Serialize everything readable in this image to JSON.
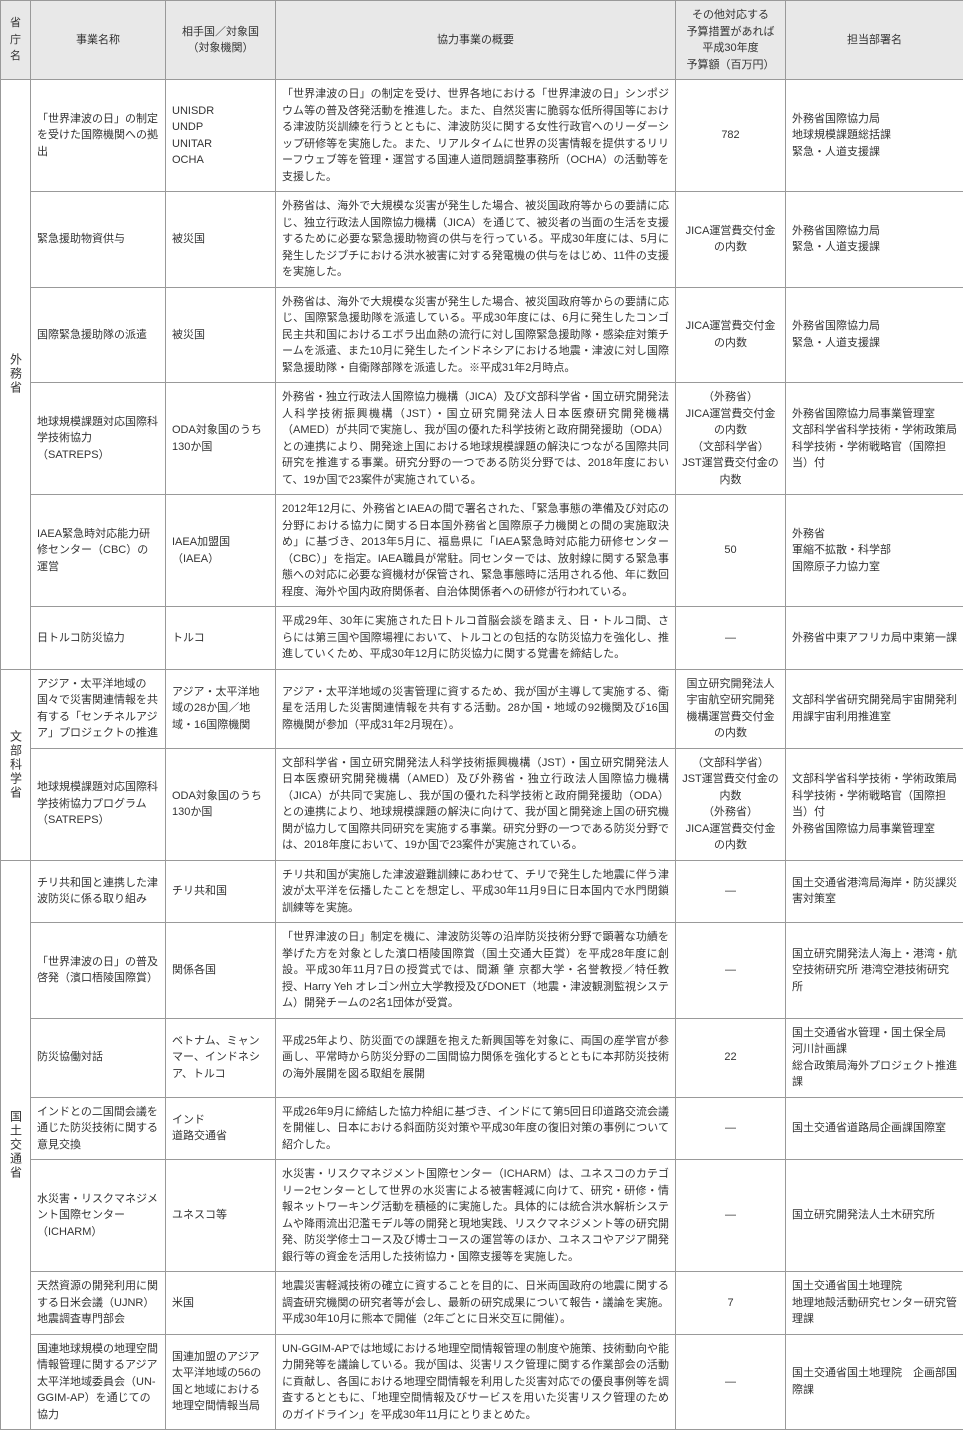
{
  "headers": {
    "ministry": "省庁名",
    "name": "事業名称",
    "partner": "相手国／対象国\n（対象機関）",
    "summary": "協力事業の概要",
    "budget": "その他対応する\n予算措置があれば\n平成30年度\n予算額（百万円）",
    "dept": "担当部署名"
  },
  "ministries": [
    {
      "label": "外務省",
      "rows": [
        {
          "name": "「世界津波の日」の制定を受けた国際機関への拠出",
          "partner": "UNISDR\nUNDP\nUNITAR\nOCHA",
          "summary": "「世界津波の日」の制定を受け、世界各地における「世界津波の日」シンポジウム等の普及啓発活動を推進した。また、自然災害に脆弱な低所得国等における津波防災訓練を行うとともに、津波防災に関する女性行政官へのリーダーシップ研修等を実施した。また、リアルタイムに世界の災害情報を提供するリリーフウェブ等を管理・運営する国連人道問題調整事務所（OCHA）の活動等を支援した。",
          "budget": "782",
          "dept": "外務省国際協力局\n地球規模課題総括課\n緊急・人道支援課"
        },
        {
          "name": "緊急援助物資供与",
          "partner": "被災国",
          "summary": "外務省は、海外で大規模な災害が発生した場合、被災国政府等からの要請に応じ、独立行政法人国際協力機構（JICA）を通じて、被災者の当面の生活を支援するために必要な緊急援助物資の供与を行っている。平成30年度には、5月に発生したジブチにおける洪水被害に対する発電機の供与をはじめ、11件の支援を実施した。",
          "budget": "JICA運営費交付金の内数",
          "dept": "外務省国際協力局\n緊急・人道支援課"
        },
        {
          "name": "国際緊急援助隊の派遣",
          "partner": "被災国",
          "summary": "外務省は、海外で大規模な災害が発生した場合、被災国政府等からの要請に応じ、国際緊急援助隊を派遣している。平成30年度には、6月に発生したコンゴ民主共和国におけるエボラ出血熱の流行に対し国際緊急援助隊・感染症対策チームを派遣、また10月に発生したインドネシアにおける地震・津波に対し国際緊急援助隊・自衛隊部隊を派遣した。※平成31年2月時点。",
          "budget": "JICA運営費交付金の内数",
          "dept": "外務省国際協力局\n緊急・人道支援課"
        },
        {
          "name": "地球規模課題対応国際科学技術協力（SATREPS）",
          "partner": "ODA対象国のうち130か国",
          "summary": "外務省・独立行政法人国際協力機構（JICA）及び文部科学省・国立研究開発法人科学技術振興機構（JST）・国立研究開発法人日本医療研究開発機構（AMED）が共同で実施し、我が国の優れた科学技術と政府開発援助（ODA）との連携により、開発途上国における地球規模課題の解決につながる国際共同研究を推進する事業。研究分野の一つである防災分野では、2018年度において、19か国で23案件が実施されている。",
          "budget": "（外務省）\nJICA運営費交付金の内数\n（文部科学省）\nJST運営費交付金の内数",
          "dept": "外務省国際協力局事業管理室\n文部科学省科学技術・学術政策局科学技術・学術戦略官（国際担当）付"
        },
        {
          "name": "IAEA緊急時対応能力研修センター（CBC）の運営",
          "partner": "IAEA加盟国（IAEA）",
          "summary": "2012年12月に、外務省とIAEAの間で署名された、「緊急事態の準備及び対応の分野における協力に関する日本国外務省と国際原子力機関との間の実施取決め」に基づき、2013年5月に、福島県に「IAEA緊急時対応能力研修センター（CBC）」を指定。IAEA職員が常駐。同センターでは、放射線に関する緊急事態への対応に必要な資機材が保管され、緊急事態時に活用される他、年に数回程度、海外や国内政府関係者、自治体関係者への研修が行われている。",
          "budget": "50",
          "dept": "外務省\n軍縮不拡散・科学部\n国際原子力協力室"
        },
        {
          "name": "日トルコ防災協力",
          "partner": "トルコ",
          "summary": "平成29年、30年に実施された日トルコ首脳会談を踏まえ、日・トルコ間、さらには第三国や国際場裡において、トルコとの包括的な防災協力を強化し、推進していくため、平成30年12月に防災協力に関する覚書を締結した。",
          "budget": "—",
          "dept": "外務省中東アフリカ局中東第一課"
        }
      ]
    },
    {
      "label": "文部科学省",
      "rows": [
        {
          "name": "アジア・太平洋地域の国々で災害関連情報を共有する「センチネルアジア」プロジェクトの推進",
          "partner": "アジア・太平洋地域の28か国／地域・16国際機関",
          "summary": "アジア・太平洋地域の災害管理に資するため、我が国が主導して実施する、衛星を活用した災害関連情報を共有する活動。28か国・地域の92機関及び16国際機関が参加（平成31年2月現在）。",
          "budget": "国立研究開発法人宇宙航空研究開発機構運営費交付金の内数",
          "dept": "文部科学省研究開発局宇宙開発利用課宇宙利用推進室"
        },
        {
          "name": "地球規模課題対応国際科学技術協力プログラム（SATREPS）",
          "partner": "ODA対象国のうち130か国",
          "summary": "文部科学省・国立研究開発法人科学技術振興機構（JST）・国立研究開発法人日本医療研究開発機構（AMED）及び外務省・独立行政法人国際協力機構（JICA）が共同で実施し、我が国の優れた科学技術と政府開発援助（ODA）との連携により、地球規模課題の解決に向けて、我が国と開発途上国の研究機関が協力して国際共同研究を実施する事業。研究分野の一つである防災分野では、2018年度において、19か国で23案件が実施されている。",
          "budget": "（文部科学省）\nJST運営費交付金の内数\n（外務省）\nJICA運営費交付金の内数",
          "dept": "文部科学省科学技術・学術政策局科学技術・学術戦略官（国際担当）付\n外務省国際協力局事業管理室"
        }
      ]
    },
    {
      "label": "国土交通省",
      "rows": [
        {
          "name": "チリ共和国と連携した津波防災に係る取り組み",
          "partner": "チリ共和国",
          "summary": "チリ共和国が実施した津波避難訓練にあわせて、チリで発生した地震に伴う津波が太平洋を伝播したことを想定し、平成30年11月9日に日本国内で水門閉鎖訓練等を実施。",
          "budget": "—",
          "dept": "国土交通省港湾局海岸・防災課災害対策室"
        },
        {
          "name": "「世界津波の日」の普及啓発（濱口梧陵国際賞）",
          "partner": "関係各国",
          "summary": "「世界津波の日」制定を機に、津波防災等の沿岸防災技術分野で顕著な功績を挙げた方を対象とした濱口梧陵国際賞（国土交通大臣賞）を平成28年度に創設。平成30年11月7日の授賞式では、間瀬 肇 京都大学・名誉教授／特任教授、Harry Yeh オレゴン州立大学教授及びDONET（地震・津波観測監視システム）開発チームの2名1団体が受賞。",
          "budget": "—",
          "dept": "国立研究開発法人海上・港湾・航空技術研究所 港湾空港技術研究所"
        },
        {
          "name": "防災協働対話",
          "partner": "ベトナム、ミャンマー、インドネシア、トルコ",
          "summary": "平成25年より、防災面での課題を抱えた新興国等を対象に、両国の産学官が参画し、平常時から防災分野の二国間協力関係を強化するとともに本邦防災技術の海外展開を図る取組を展開",
          "budget": "22",
          "dept": "国土交通省水管理・国土保全局　河川計画課\n総合政策局海外プロジェクト推進課"
        },
        {
          "name": "インドとの二国間会議を通じた防災技術に関する意見交換",
          "partner": "インド\n道路交通省",
          "summary": "平成26年9月に締結した協力枠組に基づき、インドにて第5回日印道路交流会議を開催し、日本における斜面防災対策や平成30年度の復旧対策の事例について紹介した。",
          "budget": "—",
          "dept": "国土交通省道路局企画課国際室"
        },
        {
          "name": "水災害・リスクマネジメント国際センター（ICHARM）",
          "partner": "ユネスコ等",
          "summary": "水災害・リスクマネジメント国際センター（ICHARM）は、ユネスコのカテゴリー2センターとして世界の水災害による被害軽減に向けて、研究・研修・情報ネットワーキング活動を積極的に実施した。具体的には統合洪水解析システムや降雨流出氾濫モデル等の開発と現地実践、リスクマネジメント等の研究開発、防災学修士コース及び博士コースの運営等のほか、ユネスコやアジア開発銀行等の資金を活用した技術協力・国際支援等を実施した。",
          "budget": "—",
          "dept": "国立研究開発法人土木研究所"
        },
        {
          "name": "天然資源の開発利用に関する日米会議（UJNR）地震調査専門部会",
          "partner": "米国",
          "summary": "地震災害軽減技術の確立に資することを目的に、日米両国政府の地震に関する調査研究機関の研究者等が会し、最新の研究成果について報告・議論を実施。平成30年10月に熊本で開催（2年ごとに日米交互に開催）。",
          "budget": "7",
          "dept": "国土交通省国土地理院\n地理地殻活動研究センター研究管理課"
        },
        {
          "name": "国連地球規模の地理空間情報管理に関するアジア太平洋地域委員会（UN-GGIM-AP）を通じての協力",
          "partner": "国連加盟のアジア太平洋地域の56の国と地域における地理空間情報当局",
          "summary": "UN-GGIM-APでは地域における地理空間情報管理の制度や施策、技術動向や能力開発等を議論している。我が国は、災害リスク管理に関する作業部会の活動に貢献し、各国における地理空間情報を利用した災害対応での優良事例等を調査するとともに、「地理空間情報及びサービスを用いた災害リスク管理のためのガイドライン」を平成30年11月にとりまとめた。",
          "budget": "—",
          "dept": "国土交通省国土地理院　企画部国際課"
        }
      ]
    }
  ]
}
